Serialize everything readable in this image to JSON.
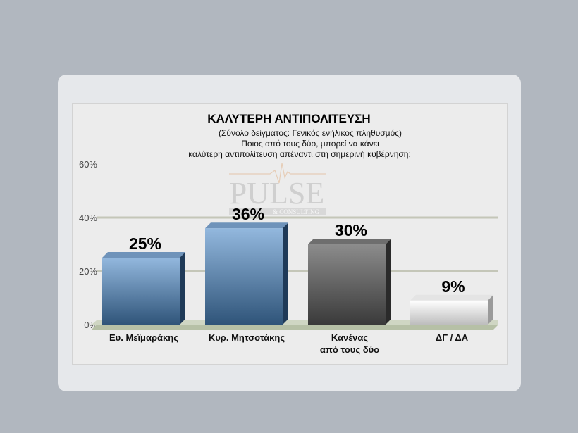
{
  "chart_data": {
    "type": "bar",
    "title": "ΚΑΛΥΤΕΡΗ ΑΝΤΙΠΟΛΙΤΕΥΣΗ",
    "subtitle": [
      "(Σύνολο δείγματος: Γενικός ενήλικος πληθυσμός)",
      "Ποιος από τους δύο, μπορεί να κάνει",
      "καλύτερη αντιπολίτευση απέναντι στη σημερινή κυβέρνηση;"
    ],
    "categories": [
      [
        "Ευ. Μεϊμαράκης"
      ],
      [
        "Κυρ. Μητσοτάκης"
      ],
      [
        "Κανένας",
        "από τους δύο"
      ],
      [
        "ΔΓ / ΔΑ"
      ]
    ],
    "values": [
      25,
      36,
      30,
      9
    ],
    "data_labels": [
      "25%",
      "36%",
      "30%",
      "9%"
    ],
    "bar_colors": [
      "blue",
      "blue",
      "gray",
      "white"
    ],
    "yticks": [
      "0%",
      "20%",
      "40%",
      "60%"
    ],
    "ytick_values": [
      0,
      20,
      40,
      60
    ],
    "ylim": [
      0,
      60
    ],
    "grid": true,
    "watermark": "PULSE & CONSULTING"
  }
}
